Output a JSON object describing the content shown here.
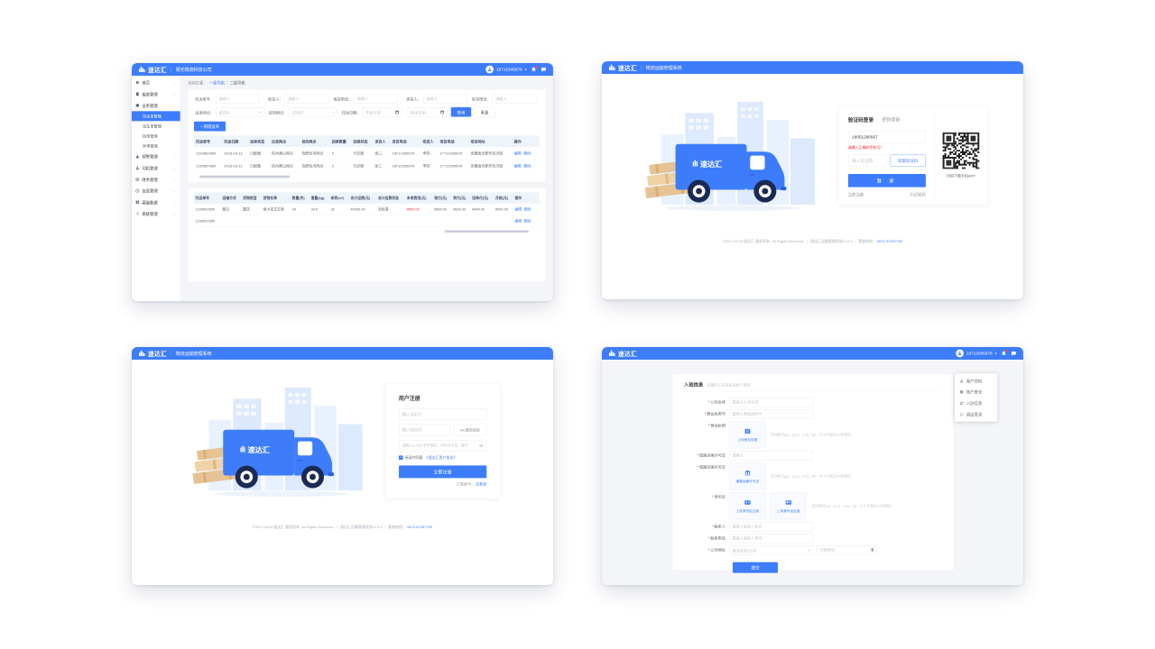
{
  "brand": {
    "logo": "速达汇",
    "system_name": "物流运输管理系统",
    "company_name": "阳光物流科技公司",
    "user_phone": "18712345678"
  },
  "colors": {
    "accent": "#3D7DFB",
    "danger": "#F5222D"
  },
  "win1": {
    "breadcrumb": {
      "prefix": "当前位置：",
      "level1": "一级导航",
      "sep": "›",
      "level2": "二级导航"
    },
    "sidebar": {
      "home": "首页",
      "report": "报表管理",
      "business": "业务管理",
      "sub": [
        "托运单管理",
        "派车单管理",
        "回单管理",
        "异常管理"
      ],
      "others": [
        "预警管理",
        "司机管理",
        "财务管理",
        "信息管理",
        "基础数据",
        "系统管理"
      ]
    },
    "filters": {
      "row1": [
        {
          "label": "托运单号：",
          "ph": "请输入"
        },
        {
          "label": "收货人：",
          "ph": "请输入"
        },
        {
          "label": "收货电话：",
          "ph": "请输入"
        },
        {
          "label": "发货人：",
          "ph": "请输入"
        },
        {
          "label": "发货电话：",
          "ph": "请输入"
        }
      ],
      "depart": {
        "label": "出发网点：",
        "ph": "请选择"
      },
      "dest": {
        "label": "目的网点：",
        "ph": "请选择"
      },
      "date": {
        "label": "托运日期：",
        "start_ph": "开始日期",
        "end_ph": "结束日期",
        "range_sep": "-"
      },
      "search": "查询",
      "reset": "重置"
    },
    "add_order": "+ 新增运单",
    "table1": {
      "headers": [
        "托运单号",
        "托运日期",
        "运单状态",
        "出发网点",
        "目的网点",
        "回单数量",
        "回单状态",
        "发货人",
        "发货电话",
        "收货人",
        "收货电话",
        "收货地址",
        "操作"
      ],
      "rows": [
        [
          "1234567890",
          "2019-03-11",
          "已配载",
          "杭州萧山网点",
          "合肥包河网点",
          "2",
          "已回单",
          "张三",
          "18712345678",
          "李四",
          "17712345678",
          "安徽省合肥市包河区"
        ],
        [
          "1234567890",
          "2019-03-11",
          "已配载",
          "杭州萧山网点",
          "合肥包河网点",
          "2",
          "已回单",
          "张三",
          "18712345678",
          "李四",
          "17712345678",
          "安徽省合肥市包河区"
        ]
      ],
      "ops": [
        "编辑",
        "删除"
      ]
    },
    "table2": {
      "headers": [
        "托运单号",
        "运输方式",
        "货物类型",
        "货物名称",
        "数量(件)",
        "重量(kg)",
        "体积(m³)",
        "合计运费(元)",
        "合计运费状态",
        "未收费用(元)",
        "现付(元)",
        "到付(元)",
        "回单付(元)",
        "月结(元)",
        "操作"
      ],
      "rows": [
        [
          "1234567890",
          "整车",
          "重货",
          "格力挂式空调",
          "24",
          "34.5",
          "32",
          "¥2000.00",
          "未结清",
          "¥500.00",
          "¥500.00",
          "¥600.00",
          "¥400.00",
          "¥500.00"
        ],
        [
          "1234567890",
          "",
          "",
          "",
          "",
          "",
          "",
          "",
          "",
          "",
          "",
          "",
          "",
          ""
        ]
      ],
      "ops": [
        "编辑",
        "删除"
      ],
      "red_cells": [
        [
          0,
          9
        ]
      ]
    }
  },
  "login": {
    "tab_sms": "验证码登录",
    "tab_sep": "|",
    "tab_pwd": "密码登录",
    "phone_value": "18051290567",
    "error": "请输入正确的手机号！",
    "code_ph": "输入验证码",
    "get_code": "获取验证码",
    "submit": "登 录",
    "register_link": "立即注册",
    "forgot_link": "忘记密码",
    "qr_caption": "扫码下载手机APP"
  },
  "register": {
    "title": "用户注册",
    "phone_ph": "输入手机号",
    "code_ph": "输入验证码",
    "resend": "34s重新获取",
    "pwd_ph": "请输入6-16位字符密码，可包含字母、数字",
    "agree_text": "阅读并同意",
    "agree_link": "《速达汇用户协议》",
    "check_mark": "✓",
    "submit": "立即注册",
    "have_account": "已有账号，",
    "to_login": "去登录"
  },
  "settle": {
    "title": "入驻信息",
    "subtitle": "完善的入驻信息有助于审核",
    "menu": [
      {
        "label": "账户资料"
      },
      {
        "label": "账户安全"
      },
      {
        "label": "入驻信息"
      },
      {
        "label": "退出登录"
      }
    ],
    "upload_hint": "支持格式jpg、jpeg、png、gif，大小不超过1M的图片",
    "fields": {
      "company": {
        "label": "公司名称",
        "ph": "请输入公司名称"
      },
      "license_no": {
        "label": "营业执照号",
        "ph": "请输入营业执照号"
      },
      "license_img": {
        "label": "营业执照",
        "btn": "上传营业执照"
      },
      "road_no": {
        "label": "道路运输许可证",
        "ph": "请输入"
      },
      "road_img": {
        "label": "道路运输许可证",
        "btn": "道路运输许可证"
      },
      "idcard": {
        "label": "身份证",
        "front": "上传身份证正面",
        "back": "上传身份证反面"
      },
      "contact": {
        "label": "联系人",
        "ph": "请输入联系人姓名"
      },
      "phone": {
        "label": "联系电话",
        "ph": "请输入联系人电话"
      },
      "address": {
        "label": "公司地址",
        "select_ph": "请选择省/市/区",
        "detail_ph": "详细地址"
      }
    },
    "submit": "提交"
  },
  "footer": {
    "copyright": "©2017-2018 速达汇 版权所有. All Rights Reserved.",
    "sep": "｜",
    "product": "速达汇运输管理系统v1.0.0",
    "service": "客服热线：",
    "tel": "0571-57157790"
  }
}
